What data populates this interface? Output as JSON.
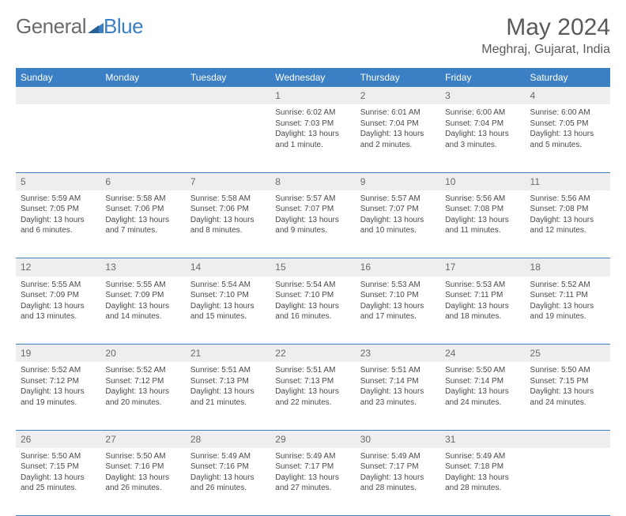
{
  "brand": {
    "text1": "General",
    "text2": "Blue"
  },
  "title": "May 2024",
  "location": "Meghraj, Gujarat, India",
  "weekdays": [
    "Sunday",
    "Monday",
    "Tuesday",
    "Wednesday",
    "Thursday",
    "Friday",
    "Saturday"
  ],
  "colors": {
    "accent": "#3b7fc4",
    "gray_row": "#eeeeee",
    "text": "#4a4a4a"
  },
  "weeks": [
    {
      "nums": [
        "",
        "",
        "",
        "1",
        "2",
        "3",
        "4"
      ],
      "cells": [
        [],
        [],
        [],
        [
          "Sunrise: 6:02 AM",
          "Sunset: 7:03 PM",
          "Daylight: 13 hours",
          "and 1 minute."
        ],
        [
          "Sunrise: 6:01 AM",
          "Sunset: 7:04 PM",
          "Daylight: 13 hours",
          "and 2 minutes."
        ],
        [
          "Sunrise: 6:00 AM",
          "Sunset: 7:04 PM",
          "Daylight: 13 hours",
          "and 3 minutes."
        ],
        [
          "Sunrise: 6:00 AM",
          "Sunset: 7:05 PM",
          "Daylight: 13 hours",
          "and 5 minutes."
        ]
      ]
    },
    {
      "nums": [
        "5",
        "6",
        "7",
        "8",
        "9",
        "10",
        "11"
      ],
      "cells": [
        [
          "Sunrise: 5:59 AM",
          "Sunset: 7:05 PM",
          "Daylight: 13 hours",
          "and 6 minutes."
        ],
        [
          "Sunrise: 5:58 AM",
          "Sunset: 7:06 PM",
          "Daylight: 13 hours",
          "and 7 minutes."
        ],
        [
          "Sunrise: 5:58 AM",
          "Sunset: 7:06 PM",
          "Daylight: 13 hours",
          "and 8 minutes."
        ],
        [
          "Sunrise: 5:57 AM",
          "Sunset: 7:07 PM",
          "Daylight: 13 hours",
          "and 9 minutes."
        ],
        [
          "Sunrise: 5:57 AM",
          "Sunset: 7:07 PM",
          "Daylight: 13 hours",
          "and 10 minutes."
        ],
        [
          "Sunrise: 5:56 AM",
          "Sunset: 7:08 PM",
          "Daylight: 13 hours",
          "and 11 minutes."
        ],
        [
          "Sunrise: 5:56 AM",
          "Sunset: 7:08 PM",
          "Daylight: 13 hours",
          "and 12 minutes."
        ]
      ]
    },
    {
      "nums": [
        "12",
        "13",
        "14",
        "15",
        "16",
        "17",
        "18"
      ],
      "cells": [
        [
          "Sunrise: 5:55 AM",
          "Sunset: 7:09 PM",
          "Daylight: 13 hours",
          "and 13 minutes."
        ],
        [
          "Sunrise: 5:55 AM",
          "Sunset: 7:09 PM",
          "Daylight: 13 hours",
          "and 14 minutes."
        ],
        [
          "Sunrise: 5:54 AM",
          "Sunset: 7:10 PM",
          "Daylight: 13 hours",
          "and 15 minutes."
        ],
        [
          "Sunrise: 5:54 AM",
          "Sunset: 7:10 PM",
          "Daylight: 13 hours",
          "and 16 minutes."
        ],
        [
          "Sunrise: 5:53 AM",
          "Sunset: 7:10 PM",
          "Daylight: 13 hours",
          "and 17 minutes."
        ],
        [
          "Sunrise: 5:53 AM",
          "Sunset: 7:11 PM",
          "Daylight: 13 hours",
          "and 18 minutes."
        ],
        [
          "Sunrise: 5:52 AM",
          "Sunset: 7:11 PM",
          "Daylight: 13 hours",
          "and 19 minutes."
        ]
      ]
    },
    {
      "nums": [
        "19",
        "20",
        "21",
        "22",
        "23",
        "24",
        "25"
      ],
      "cells": [
        [
          "Sunrise: 5:52 AM",
          "Sunset: 7:12 PM",
          "Daylight: 13 hours",
          "and 19 minutes."
        ],
        [
          "Sunrise: 5:52 AM",
          "Sunset: 7:12 PM",
          "Daylight: 13 hours",
          "and 20 minutes."
        ],
        [
          "Sunrise: 5:51 AM",
          "Sunset: 7:13 PM",
          "Daylight: 13 hours",
          "and 21 minutes."
        ],
        [
          "Sunrise: 5:51 AM",
          "Sunset: 7:13 PM",
          "Daylight: 13 hours",
          "and 22 minutes."
        ],
        [
          "Sunrise: 5:51 AM",
          "Sunset: 7:14 PM",
          "Daylight: 13 hours",
          "and 23 minutes."
        ],
        [
          "Sunrise: 5:50 AM",
          "Sunset: 7:14 PM",
          "Daylight: 13 hours",
          "and 24 minutes."
        ],
        [
          "Sunrise: 5:50 AM",
          "Sunset: 7:15 PM",
          "Daylight: 13 hours",
          "and 24 minutes."
        ]
      ]
    },
    {
      "nums": [
        "26",
        "27",
        "28",
        "29",
        "30",
        "31",
        ""
      ],
      "cells": [
        [
          "Sunrise: 5:50 AM",
          "Sunset: 7:15 PM",
          "Daylight: 13 hours",
          "and 25 minutes."
        ],
        [
          "Sunrise: 5:50 AM",
          "Sunset: 7:16 PM",
          "Daylight: 13 hours",
          "and 26 minutes."
        ],
        [
          "Sunrise: 5:49 AM",
          "Sunset: 7:16 PM",
          "Daylight: 13 hours",
          "and 26 minutes."
        ],
        [
          "Sunrise: 5:49 AM",
          "Sunset: 7:17 PM",
          "Daylight: 13 hours",
          "and 27 minutes."
        ],
        [
          "Sunrise: 5:49 AM",
          "Sunset: 7:17 PM",
          "Daylight: 13 hours",
          "and 28 minutes."
        ],
        [
          "Sunrise: 5:49 AM",
          "Sunset: 7:18 PM",
          "Daylight: 13 hours",
          "and 28 minutes."
        ],
        []
      ]
    }
  ]
}
